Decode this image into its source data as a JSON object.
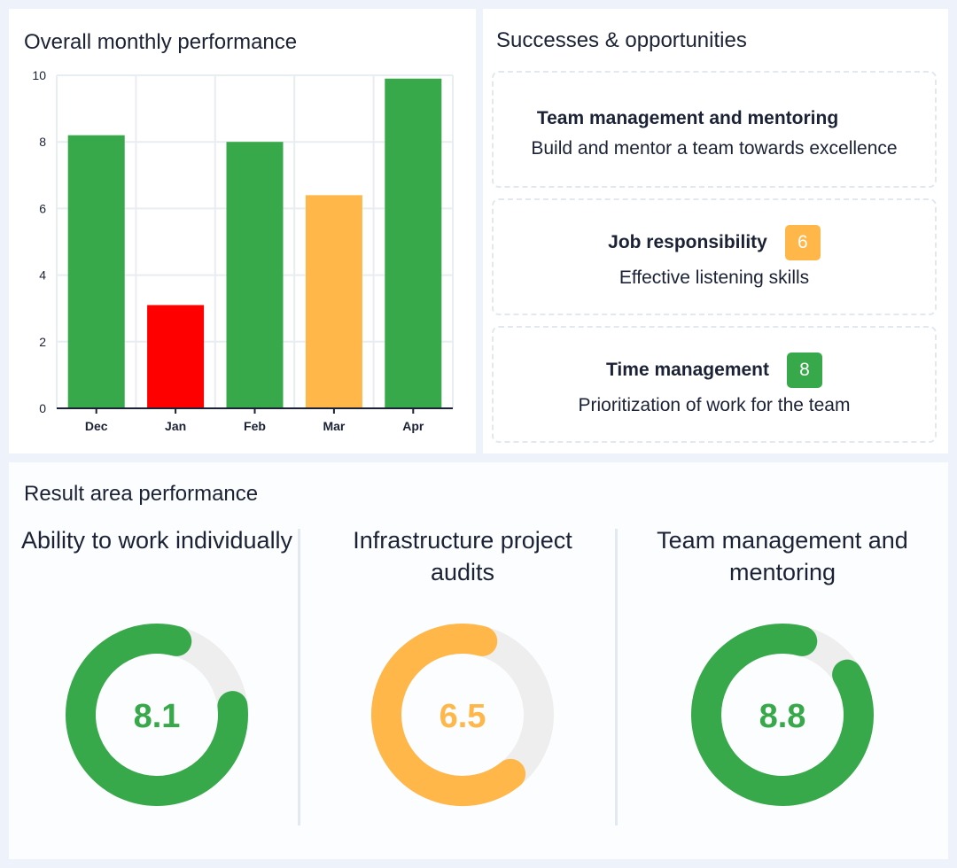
{
  "monthly": {
    "title": "Overall monthly performance",
    "chart_data": {
      "type": "bar",
      "categories": [
        "Dec",
        "Jan",
        "Feb",
        "Mar",
        "Apr"
      ],
      "values": [
        8.2,
        3.1,
        8.0,
        6.4,
        9.9
      ],
      "colors": [
        "#38a94a",
        "#ff0000",
        "#38a94a",
        "#ffb74a",
        "#38a94a"
      ],
      "yticks": [
        "0",
        "2",
        "4",
        "6",
        "8",
        "10"
      ],
      "ylim": [
        0,
        10
      ],
      "grid": true
    }
  },
  "successes": {
    "title": "Successes & opportunities",
    "items": [
      {
        "title": "Team management and mentoring",
        "description": "Build and mentor a team towards excellence",
        "score": null,
        "color": "#ffffff"
      },
      {
        "title": "Job responsibility",
        "description": "Effective listening skills",
        "score": "6",
        "color": "#ffb74a"
      },
      {
        "title": "Time management",
        "description": "Prioritization of work for the team",
        "score": "8",
        "color": "#38a94a"
      }
    ]
  },
  "result_area": {
    "title": "Result area performance",
    "items": [
      {
        "title": "Ability to work individually",
        "value": "8.1",
        "color": "#38a94a"
      },
      {
        "title": "Infrastructure project audits",
        "value": "6.5",
        "color": "#ffb74a"
      },
      {
        "title": "Team management and mentoring",
        "value": "8.8",
        "color": "#38a94a"
      }
    ],
    "max": 10,
    "track_color": "#eeeeee"
  }
}
